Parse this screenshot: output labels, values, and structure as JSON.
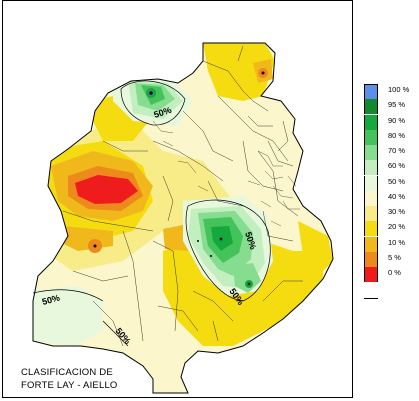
{
  "caption": {
    "line1": "CLASIFICACION DE",
    "line2": "FORTE LAY - AIELLO"
  },
  "legend": {
    "items": [
      {
        "label": "100 %",
        "color": "#5b8fe8"
      },
      {
        "label": "95 %",
        "color": "#118a2e"
      },
      {
        "label": "90 %",
        "color": "#15a83c"
      },
      {
        "label": "80 %",
        "color": "#44c35a"
      },
      {
        "label": "70 %",
        "color": "#86dc8f"
      },
      {
        "label": "60 %",
        "color": "#c3efc0"
      },
      {
        "label": "50 %",
        "color": "#e8f8dc"
      },
      {
        "label": "40 %",
        "color": "#fbf6cc"
      },
      {
        "label": "30 %",
        "color": "#f7ec88"
      },
      {
        "label": "20 %",
        "color": "#f4dc10"
      },
      {
        "label": "10 %",
        "color": "#f0b81a"
      },
      {
        "label": "5 %",
        "color": "#ee8a1c"
      },
      {
        "label": "0 %",
        "color": "#ee1c1c"
      }
    ]
  },
  "contour_labels": [
    "50%",
    "50%",
    "50%",
    "50%",
    "50%"
  ]
}
